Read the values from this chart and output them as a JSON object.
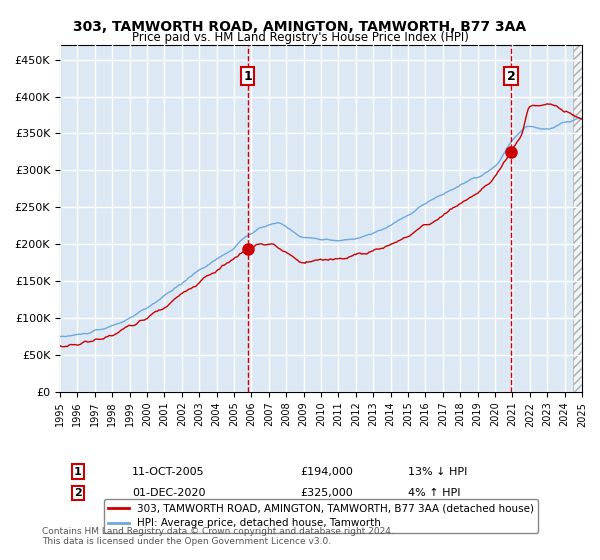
{
  "title": "303, TAMWORTH ROAD, AMINGTON, TAMWORTH, B77 3AA",
  "subtitle": "Price paid vs. HM Land Registry's House Price Index (HPI)",
  "hpi_label": "HPI: Average price, detached house, Tamworth",
  "price_label": "303, TAMWORTH ROAD, AMINGTON, TAMWORTH, B77 3AA (detached house)",
  "xlabel": "",
  "ylabel": "",
  "ylim": [
    0,
    470000
  ],
  "yticks": [
    0,
    50000,
    100000,
    150000,
    200000,
    250000,
    300000,
    350000,
    400000,
    450000
  ],
  "ytick_labels": [
    "£0",
    "£50K",
    "£100K",
    "£150K",
    "£200K",
    "£250K",
    "£300K",
    "£350K",
    "£400K",
    "£450K"
  ],
  "bg_color": "#dce9f5",
  "plot_bg": "#dce9f5",
  "grid_color": "#ffffff",
  "hpi_color": "#6fa8dc",
  "price_color": "#cc0000",
  "marker_color": "#cc0000",
  "dashed_line_color": "#cc0000",
  "event1_x": 2005.78,
  "event1_y": 194000,
  "event1_label": "11-OCT-2005",
  "event1_price": "£194,000",
  "event1_note": "13% ↓ HPI",
  "event2_x": 2020.92,
  "event2_y": 325000,
  "event2_label": "01-DEC-2020",
  "event2_price": "£325,000",
  "event2_note": "4% ↑ HPI",
  "footnote": "Contains HM Land Registry data © Crown copyright and database right 2024.\nThis data is licensed under the Open Government Licence v3.0.",
  "xmin": 1995,
  "xmax": 2025,
  "hatch_start": 2024.5
}
